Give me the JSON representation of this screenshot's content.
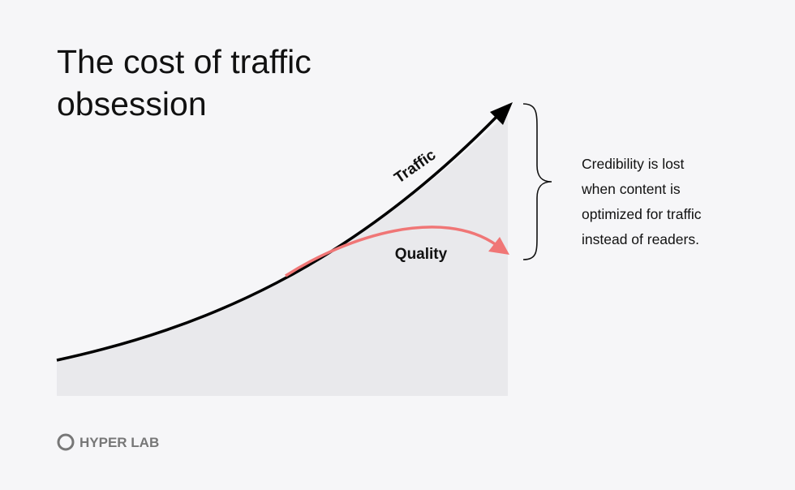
{
  "title": {
    "lines": [
      "The cost of traffic",
      "obsession"
    ]
  },
  "curves": {
    "traffic": "Traffic",
    "quality": "Quality"
  },
  "annotation": {
    "lines": [
      "Credibility is lost",
      "when content is",
      "optimized for traffic",
      "instead of readers."
    ]
  },
  "brand": "HYPER LAB"
}
